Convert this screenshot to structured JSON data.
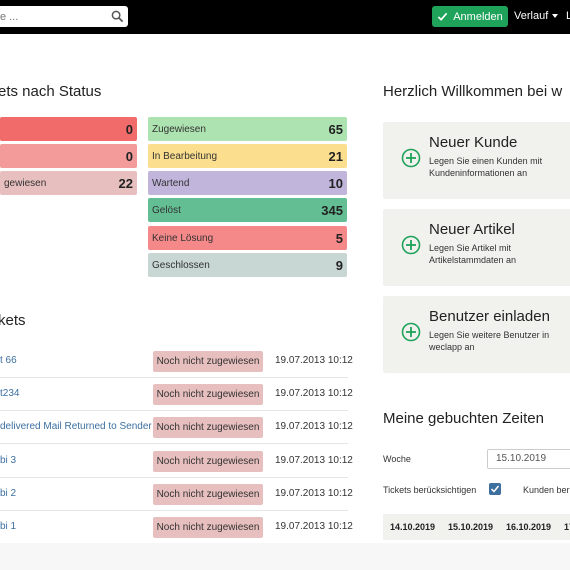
{
  "topbar": {
    "search_placeholder": "e ...",
    "login_label": "Anmelden",
    "verlauf_label": "Verlauf",
    "more_label": "L"
  },
  "status_section": {
    "title": "ets nach Status",
    "left_tiles": [
      {
        "label": "",
        "count": "0",
        "color": "#f26b6b"
      },
      {
        "label": "",
        "count": "0",
        "color": "#f39a9a"
      },
      {
        "label": "gewiesen",
        "count": "22",
        "color": "#e8bfbf"
      }
    ],
    "right_tiles": [
      {
        "label": "Zugewiesen",
        "count": "65",
        "color": "#ade3b0"
      },
      {
        "label": "In Bearbeitung",
        "count": "21",
        "color": "#fbdf8e"
      },
      {
        "label": "Wartend",
        "count": "10",
        "color": "#c1b5dc"
      },
      {
        "label": "Gelöst",
        "count": "345",
        "color": "#63bf93"
      },
      {
        "label": "Keine Lösung",
        "count": "5",
        "color": "#f5898a"
      },
      {
        "label": "Geschlossen",
        "count": "9",
        "color": "#c8d6d4"
      }
    ]
  },
  "tickets_section": {
    "title": "kets",
    "rows": [
      {
        "name": "t 66",
        "status": "Noch nicht zugewiesen",
        "date": "19.07.2013 10:12"
      },
      {
        "name": "t234",
        "status": "Noch nicht zugewiesen",
        "date": "19.07.2013 10:12"
      },
      {
        "name": "delivered Mail Returned to Sender",
        "status": "Noch nicht zugewiesen",
        "date": "19.07.2013 10:12"
      },
      {
        "name": "bi 3",
        "status": "Noch nicht zugewiesen",
        "date": "19.07.2013 10:12"
      },
      {
        "name": "bi 2",
        "status": "Noch nicht zugewiesen",
        "date": "19.07.2013 10:12"
      },
      {
        "name": "bi 1",
        "status": "Noch nicht zugewiesen",
        "date": "19.07.2013 10:12"
      }
    ]
  },
  "welcome": {
    "title": "Herzlich Willkommen bei w",
    "cards": [
      {
        "title": "Neuer Kunde",
        "desc": "Legen Sie einen Kunden mit Kundeninformationen an"
      },
      {
        "title": "Neuer Artikel",
        "desc": "Legen Sie Artikel mit Artikelstammdaten an"
      },
      {
        "title": "Benutzer einladen",
        "desc": "Legen Sie weitere Benutzer in weclapp an"
      }
    ]
  },
  "time_booking": {
    "title": "Meine gebuchten Zeiten",
    "week_label": "Woche",
    "week_value": "15.10.2019",
    "tickets_label": "Tickets berücksichtigen",
    "tickets_checked": true,
    "customer_label": "Kunden ber",
    "days": [
      "14.10.2019",
      "15.10.2019",
      "16.10.2019",
      "17"
    ]
  },
  "colors": {
    "accent_green": "#1fa35a",
    "link_blue": "#3c6fa0",
    "plus_green": "#1fa35a",
    "badge_unassigned": "#e8bfbf"
  }
}
